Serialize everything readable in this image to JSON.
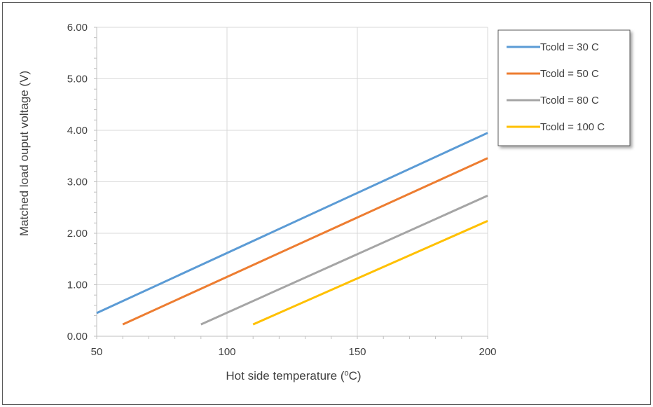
{
  "chart_data": {
    "type": "line",
    "title": "",
    "xlabel": {
      "main": "Hot side temperature (",
      "sup": "o",
      "tail": "C)"
    },
    "ylabel": "Matched load ouput voltage (V)",
    "xlim": [
      50,
      200
    ],
    "ylim": [
      0,
      6
    ],
    "x_ticks": [
      "50",
      "100",
      "150",
      "200"
    ],
    "y_ticks": [
      "0.00",
      "1.00",
      "2.00",
      "3.00",
      "4.00",
      "5.00",
      "6.00"
    ],
    "x_tick_values": [
      50,
      100,
      150,
      200
    ],
    "y_tick_values": [
      0,
      1,
      2,
      3,
      4,
      5,
      6
    ],
    "grid": true,
    "legend_position": "top-right",
    "series": [
      {
        "name": "Tcold = 30 C",
        "color": "#5B9BD5",
        "x": [
          50,
          200
        ],
        "y": [
          0.45,
          3.95
        ]
      },
      {
        "name": "Tcold = 50 C",
        "color": "#ED7D31",
        "x": [
          60,
          200
        ],
        "y": [
          0.23,
          3.46
        ]
      },
      {
        "name": "Tcold = 80 C",
        "color": "#A5A5A5",
        "x": [
          90,
          200
        ],
        "y": [
          0.23,
          2.73
        ]
      },
      {
        "name": "Tcold = 100 C",
        "color": "#FFC000",
        "x": [
          110,
          200
        ],
        "y": [
          0.23,
          2.24
        ]
      }
    ]
  }
}
